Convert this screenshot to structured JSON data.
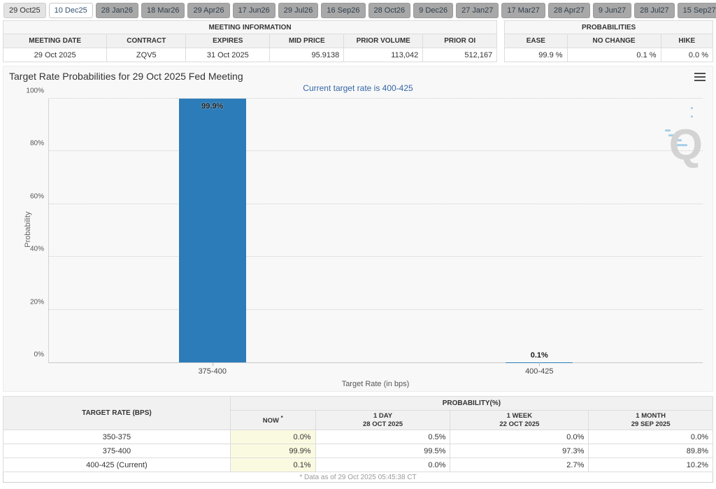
{
  "tabs": [
    "29 Oct25",
    "10 Dec25",
    "28 Jan26",
    "18 Mar26",
    "29 Apr26",
    "17 Jun26",
    "29 Jul26",
    "16 Sep26",
    "28 Oct26",
    "9 Dec26",
    "27 Jan27",
    "17 Mar27",
    "28 Apr27",
    "9 Jun27",
    "28 Jul27",
    "15 Sep27"
  ],
  "meeting_info": {
    "title": "MEETING INFORMATION",
    "columns": [
      "MEETING DATE",
      "CONTRACT",
      "EXPIRES",
      "MID PRICE",
      "PRIOR VOLUME",
      "PRIOR OI"
    ],
    "row": {
      "meeting_date": "29 Oct 2025",
      "contract": "ZQV5",
      "expires": "31 Oct 2025",
      "mid_price": "95.9138",
      "prior_volume": "113,042",
      "prior_oi": "512,167"
    }
  },
  "probabilities": {
    "title": "PROBABILITIES",
    "columns": [
      "EASE",
      "NO CHANGE",
      "HIKE"
    ],
    "row": {
      "ease": "99.9 %",
      "no_change": "0.1 %",
      "hike": "0.0 %"
    }
  },
  "chart_data": {
    "type": "bar",
    "title": "Target Rate Probabilities for 29 Oct 2025 Fed Meeting",
    "subtitle": "Current target rate is 400-425",
    "categories": [
      "375-400",
      "400-425"
    ],
    "values": [
      99.9,
      0.1
    ],
    "labels": [
      "99.9%",
      "0.1%"
    ],
    "xlabel": "Target Rate (in bps)",
    "ylabel": "Probability",
    "ylim": [
      0,
      100
    ],
    "ytick_step": 20,
    "ytick_labels": [
      "0%",
      "20%",
      "40%",
      "60%",
      "80%",
      "100%"
    ],
    "grid": true,
    "legend": "none",
    "bar_color": "#2b7cb8",
    "watermark_letter": "Q"
  },
  "comparison_table": {
    "col1_header": "TARGET RATE (BPS)",
    "group_header": "PROBABILITY(%)",
    "now_label": "NOW",
    "now_sup": "*",
    "periods": [
      {
        "label": "1 DAY",
        "date": "28 OCT 2025"
      },
      {
        "label": "1 WEEK",
        "date": "22 OCT 2025"
      },
      {
        "label": "1 MONTH",
        "date": "29 SEP 2025"
      }
    ],
    "rows": [
      {
        "rate": "350-375",
        "now": "0.0%",
        "day": "0.5%",
        "week": "0.0%",
        "month": "0.0%"
      },
      {
        "rate": "375-400",
        "now": "99.9%",
        "day": "99.5%",
        "week": "97.3%",
        "month": "89.8%"
      },
      {
        "rate": "400-425 (Current)",
        "now": "0.1%",
        "day": "0.0%",
        "week": "2.7%",
        "month": "10.2%"
      }
    ],
    "footnote": "* Data as of 29 Oct 2025 05:45:38 CT"
  },
  "colors": {
    "bar": "#2b7cb8",
    "subtitle_blue": "#3567a6",
    "now_highlight": "#fafae1",
    "tab_inactive": "#a8a8a8",
    "chart_bg": "#f8f8f8"
  }
}
